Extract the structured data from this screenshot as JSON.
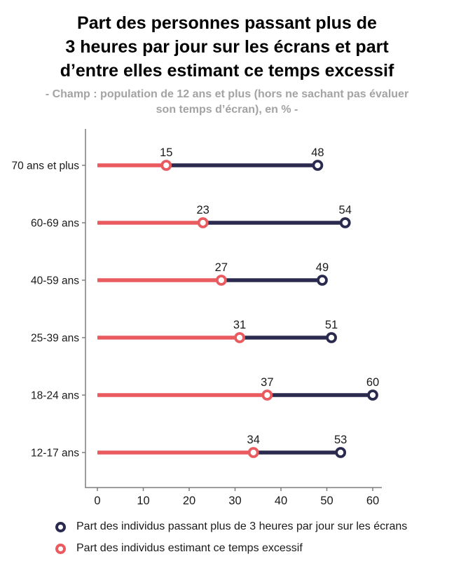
{
  "header": {
    "title_lines": [
      "Part des personnes passant plus de",
      "3 heures par jour sur les écrans et part",
      "d’entre elles estimant ce temps excessif"
    ],
    "subtitle_lines": [
      "- Champ : population de 12 ans et plus (hors ne sachant pas évaluer",
      "son temps d’écran), en % -"
    ]
  },
  "chart_data": {
    "type": "dumbbell",
    "orientation": "horizontal",
    "categories": [
      "70 ans et plus",
      "60-69 ans",
      "40-59 ans",
      "25-39 ans",
      "18-24 ans",
      "12-17 ans"
    ],
    "series": [
      {
        "name": "Part des individus passant plus de 3 heures par jour sur les écrans",
        "color": "#2a2a4f",
        "values": [
          48,
          54,
          49,
          51,
          60,
          53
        ]
      },
      {
        "name": "Part des individus estimant ce temps excessif",
        "color": "#ea5b60",
        "values": [
          15,
          23,
          27,
          31,
          37,
          34
        ]
      }
    ],
    "x_ticks": [
      0,
      10,
      20,
      30,
      40,
      50,
      60
    ],
    "xlim": [
      0,
      62
    ],
    "unit": "%",
    "grid": false,
    "legend_position": "bottom",
    "axis_color": "#7f7f7f",
    "label_color": "#1a1a1a"
  },
  "legend": {
    "items": [
      {
        "label": "Part des individus passant plus de 3 heures par jour sur les écrans",
        "color": "#2a2a4f"
      },
      {
        "label": "Part des individus estimant ce temps excessif",
        "color": "#ea5b60"
      }
    ]
  },
  "colors": {
    "navy": "#2a2a4f",
    "coral": "#ea5b60",
    "axis": "#7f7f7f",
    "subtitle_gray": "#a3a3a3",
    "text": "#1a1a1a"
  }
}
